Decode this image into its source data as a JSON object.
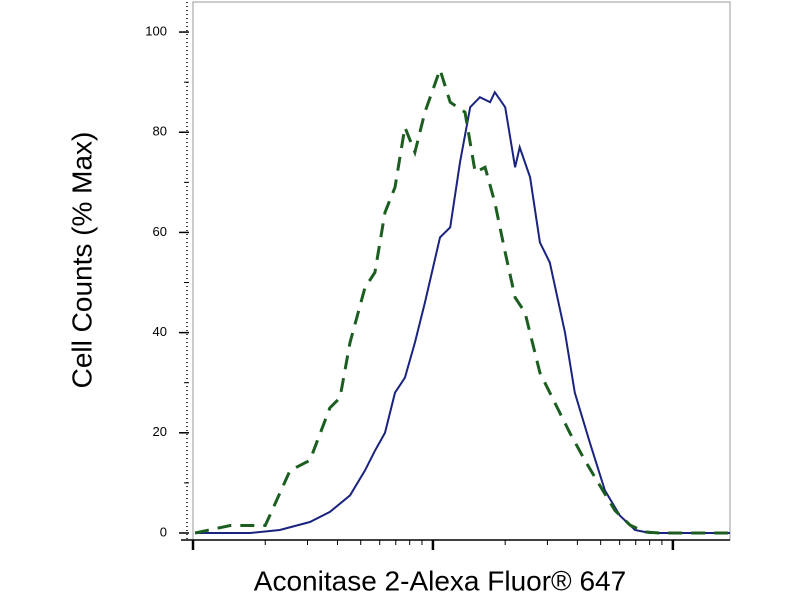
{
  "chart_data": {
    "type": "histogram-overlay",
    "x_label": "Aconitase 2-Alexa Fluor® 647",
    "y_label": "Cell Counts (% Max)",
    "xscale": "log",
    "xlim": [
      1,
      173
    ],
    "xticks": [
      1,
      10,
      100
    ],
    "ylim": [
      -1.4,
      106
    ],
    "yticks": [
      0,
      20,
      40,
      60,
      80,
      100
    ],
    "series": [
      {
        "color": "#1a237e",
        "dash": false,
        "x": [
          1.02,
          1.73,
          2.3,
          3.07,
          3.72,
          4.51,
          5.21,
          5.73,
          6.31,
          6.95,
          7.64,
          8.41,
          9.26,
          10.7,
          11.8,
          12.96,
          14.3,
          15.7,
          17.3,
          18.1,
          20.0,
          22.0,
          23.0,
          25.4,
          27.9,
          30.7,
          35.5,
          39.0,
          45.1,
          52.1,
          60.1,
          69.5,
          80.2,
          173
        ],
        "values": [
          0,
          0,
          0.6,
          2.2,
          4.2,
          7.5,
          12.5,
          16.4,
          20,
          28,
          31,
          38,
          46,
          59,
          61,
          74,
          85,
          87,
          86,
          88,
          85,
          73,
          77,
          71,
          58,
          54,
          40,
          28,
          18,
          8.5,
          3.5,
          0.6,
          0,
          0
        ]
      },
      {
        "color": "#1b5e20",
        "dash": true,
        "x": [
          1.02,
          1.43,
          2.0,
          2.09,
          2.54,
          3.07,
          3.72,
          4.1,
          4.51,
          5.21,
          5.73,
          6.31,
          6.95,
          7.64,
          8.41,
          9.26,
          10.7,
          11.8,
          13.6,
          15.0,
          16.5,
          18.1,
          20.0,
          22.0,
          24.2,
          27.9,
          32.2,
          37.2,
          43.0,
          49.6,
          57.3,
          66.2,
          76.4,
          88.3,
          130,
          173
        ],
        "values": [
          0,
          1.5,
          1.5,
          3.5,
          12.5,
          14.5,
          25,
          27,
          38,
          49,
          52,
          64,
          69,
          81,
          76,
          84,
          92.5,
          86,
          84,
          72,
          73,
          66,
          56,
          47,
          44,
          32,
          26,
          20,
          14.5,
          9.5,
          4.5,
          1.6,
          0.2,
          0,
          0,
          0
        ]
      }
    ]
  }
}
